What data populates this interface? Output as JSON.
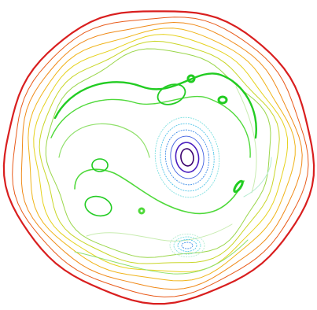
{
  "chart_data": {
    "type": "contour",
    "title": "",
    "xlabel": "",
    "ylabel": "",
    "grid": false,
    "legend": "none",
    "background": "#ffffff",
    "levels": [
      {
        "level": 1,
        "color": "#3a006e"
      },
      {
        "level": 2,
        "color": "#4b1fbf"
      },
      {
        "level": 3,
        "color": "#3f5fe0"
      },
      {
        "level": 4,
        "color": "#3e8de8"
      },
      {
        "level": 5,
        "color": "#4fc3e8"
      },
      {
        "level": 6,
        "color": "#7fe0e0"
      },
      {
        "level": 7,
        "color": "#b5ecd0"
      },
      {
        "level": 8,
        "color": "#c8ecb0"
      },
      {
        "level": 9,
        "color": "#8fe06a"
      },
      {
        "level": 10,
        "color": "#4fd93a"
      },
      {
        "level": 11,
        "color": "#22cc22"
      },
      {
        "level": 12,
        "color": "#9ad64a"
      },
      {
        "level": 13,
        "color": "#c9d628"
      },
      {
        "level": 14,
        "color": "#e6d21e"
      },
      {
        "level": 15,
        "color": "#f0b419"
      },
      {
        "level": 16,
        "color": "#f08a19"
      },
      {
        "level": 17,
        "color": "#e85a1a"
      },
      {
        "level": 18,
        "color": "#d91f1f"
      }
    ],
    "features": [
      {
        "kind": "minimum",
        "position": "center",
        "levels": [
          1,
          2,
          3,
          4,
          5,
          6
        ]
      },
      {
        "kind": "minimum",
        "position": "lower-center",
        "levels": [
          4,
          5,
          6,
          7
        ]
      },
      {
        "kind": "boundary",
        "position": "outer ring",
        "levels": [
          12,
          13,
          14,
          15,
          16,
          17,
          18
        ]
      }
    ]
  }
}
